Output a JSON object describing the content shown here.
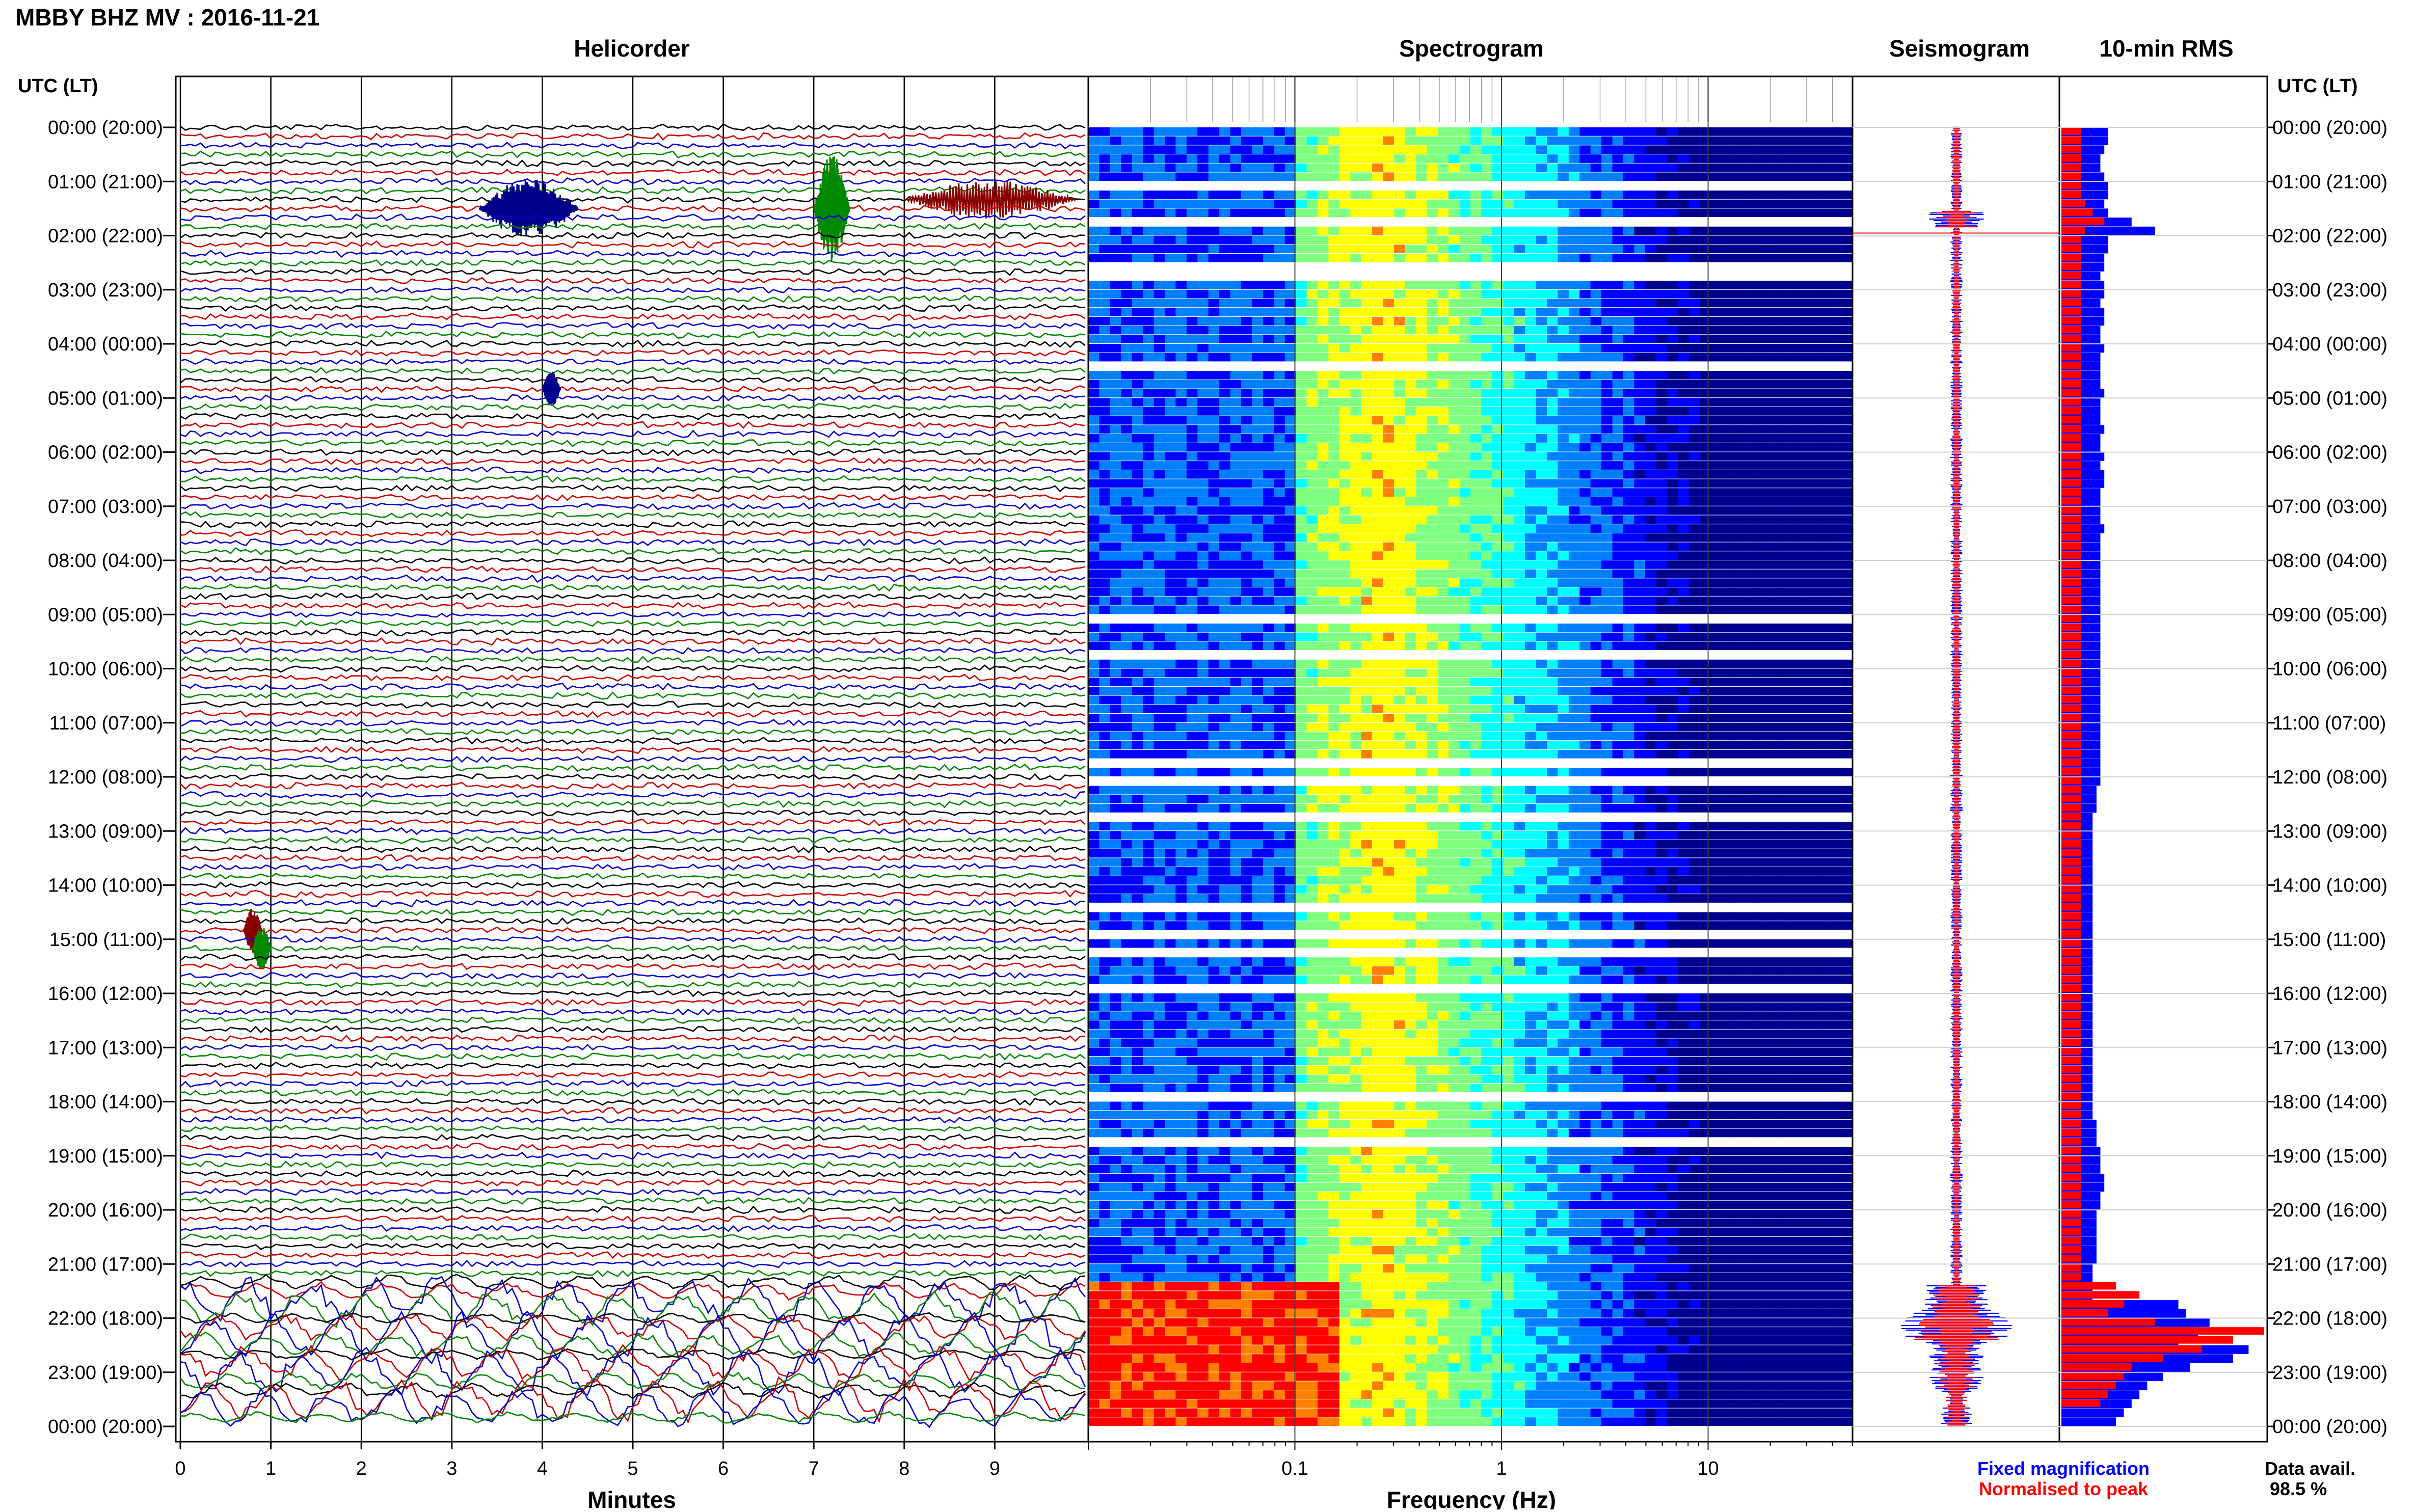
{
  "page_title": "MBBY BHZ MV : 2016-11-21",
  "colors": {
    "trace_cycle": [
      "#000000",
      "#cc0000",
      "#0000cc",
      "#008800"
    ],
    "fixed": "#0000ff",
    "normalised": "#ff0000"
  },
  "hour_labels": [
    "00:00 (20:00)",
    "01:00 (21:00)",
    "02:00 (22:00)",
    "03:00 (23:00)",
    "04:00 (00:00)",
    "05:00 (01:00)",
    "06:00 (02:00)",
    "07:00 (03:00)",
    "08:00 (04:00)",
    "09:00 (05:00)",
    "10:00 (06:00)",
    "11:00 (07:00)",
    "12:00 (08:00)",
    "13:00 (09:00)",
    "14:00 (10:00)",
    "15:00 (11:00)",
    "16:00 (12:00)",
    "17:00 (13:00)",
    "18:00 (14:00)",
    "19:00 (15:00)",
    "20:00 (16:00)",
    "21:00 (17:00)",
    "22:00 (18:00)",
    "23:00 (19:00)",
    "00:00 (20:00)"
  ],
  "time_axis_header": "UTC (LT)",
  "chart_data": [
    {
      "type": "line",
      "title": "Helicorder",
      "xlabel": "Minutes",
      "x_ticks": [
        "0",
        "1",
        "2",
        "3",
        "4",
        "5",
        "6",
        "7",
        "8",
        "9"
      ],
      "xlim": [
        0,
        10
      ],
      "rows": 144,
      "row_minutes": 10,
      "events": [
        {
          "row": 9,
          "start_min": 3.3,
          "end_min": 4.4,
          "amplitude": 3.5,
          "color": "#000088"
        },
        {
          "row": 9,
          "start_min": 7.0,
          "end_min": 7.4,
          "amplitude": 6,
          "color": "#008800"
        },
        {
          "row": 8,
          "start_min": 8.0,
          "end_min": 9.9,
          "amplitude": 2.2,
          "color": "#880000"
        },
        {
          "row": 29,
          "start_min": 4.0,
          "end_min": 4.2,
          "amplitude": 2,
          "color": "#000088"
        },
        {
          "row": 89,
          "start_min": 0.7,
          "end_min": 0.9,
          "amplitude": 2.5,
          "color": "#880000"
        },
        {
          "row": 91,
          "start_min": 0.8,
          "end_min": 1.0,
          "amplitude": 2.5,
          "color": "#008800"
        }
      ],
      "noise_profile": "low until 21:20 UTC, strong long-period oscillation 21:20-24:00 UTC"
    },
    {
      "type": "heatmap",
      "title": "Spectrogram",
      "xlabel": "Frequency (Hz)",
      "x_scale": "log",
      "xlim": [
        0.01,
        50
      ],
      "x_ticks": [
        "0.1",
        "1",
        "10"
      ],
      "colormap": [
        "#00008f",
        "#0000ff",
        "#007fff",
        "#00ffff",
        "#7fff7f",
        "#ffff00",
        "#ff7f00",
        "#ff0000"
      ],
      "energy_peak_hz": 0.25,
      "high_energy_period_utc": "21:20-24:00 below 0.15 Hz"
    },
    {
      "type": "line",
      "title": "Seismogram",
      "series": [
        {
          "name": "Fixed magnification",
          "color": "#0000ff"
        },
        {
          "name": "Normalised to peak",
          "color": "#ff0000"
        }
      ],
      "events_utc": [
        "01:40",
        "21:30-22:50"
      ]
    },
    {
      "type": "bar",
      "title": "10-min RMS",
      "orientation": "horizontal",
      "series": [
        {
          "name": "Fixed magnification",
          "color": "#0000ff",
          "values": [
            0.6,
            0.6,
            0.55,
            0.5,
            0.5,
            0.55,
            0.6,
            0.6,
            0.55,
            0.6,
            0.9,
            1.2,
            0.6,
            0.6,
            0.55,
            0.55,
            0.5,
            0.55,
            0.55,
            0.5,
            0.55,
            0.55,
            0.5,
            0.5,
            0.55,
            0.5,
            0.5,
            0.5,
            0.5,
            0.55,
            0.5,
            0.5,
            0.5,
            0.55,
            0.5,
            0.5,
            0.55,
            0.5,
            0.55,
            0.55,
            0.5,
            0.5,
            0.5,
            0.5,
            0.55,
            0.5,
            0.5,
            0.5,
            0.5,
            0.5,
            0.5,
            0.5,
            0.5,
            0.5,
            0.5,
            0.5,
            0.5,
            0.5,
            0.5,
            0.5,
            0.5,
            0.5,
            0.5,
            0.5,
            0.5,
            0.5,
            0.5,
            0.5,
            0.5,
            0.5,
            0.5,
            0.5,
            0.5,
            0.45,
            0.45,
            0.45,
            0.4,
            0.4,
            0.4,
            0.4,
            0.4,
            0.4,
            0.4,
            0.4,
            0.4,
            0.4,
            0.4,
            0.4,
            0.4,
            0.4,
            0.4,
            0.4,
            0.4,
            0.4,
            0.4,
            0.4,
            0.4,
            0.4,
            0.4,
            0.4,
            0.4,
            0.4,
            0.4,
            0.4,
            0.4,
            0.4,
            0.4,
            0.4,
            0.4,
            0.4,
            0.45,
            0.45,
            0.45,
            0.5,
            0.5,
            0.5,
            0.55,
            0.55,
            0.5,
            0.5,
            0.45,
            0.45,
            0.45,
            0.45,
            0.45,
            0.45,
            0.4,
            0.4,
            0.4,
            0.4,
            1.5,
            1.6,
            1.9,
            1.75,
            1.5,
            2.4,
            2.2,
            1.65,
            1.3,
            1.1,
            1.0,
            0.9,
            0.8,
            0.7
          ]
        },
        {
          "name": "Normalised to peak",
          "color": "#ff0000",
          "values": [
            0.25,
            0.25,
            0.25,
            0.25,
            0.25,
            0.25,
            0.25,
            0.25,
            0.3,
            0.4,
            0.55,
            0.3,
            0.25,
            0.25,
            0.25,
            0.25,
            0.25,
            0.25,
            0.25,
            0.25,
            0.25,
            0.25,
            0.25,
            0.25,
            0.25,
            0.25,
            0.25,
            0.25,
            0.25,
            0.25,
            0.25,
            0.25,
            0.25,
            0.25,
            0.25,
            0.25,
            0.25,
            0.25,
            0.25,
            0.25,
            0.25,
            0.25,
            0.25,
            0.25,
            0.25,
            0.25,
            0.25,
            0.25,
            0.25,
            0.25,
            0.25,
            0.25,
            0.25,
            0.25,
            0.25,
            0.25,
            0.25,
            0.25,
            0.25,
            0.25,
            0.25,
            0.25,
            0.25,
            0.25,
            0.25,
            0.25,
            0.25,
            0.25,
            0.25,
            0.25,
            0.25,
            0.25,
            0.25,
            0.25,
            0.25,
            0.25,
            0.25,
            0.25,
            0.25,
            0.25,
            0.25,
            0.25,
            0.25,
            0.25,
            0.25,
            0.25,
            0.25,
            0.25,
            0.25,
            0.25,
            0.25,
            0.25,
            0.25,
            0.25,
            0.25,
            0.25,
            0.25,
            0.25,
            0.25,
            0.25,
            0.25,
            0.25,
            0.25,
            0.25,
            0.25,
            0.25,
            0.25,
            0.25,
            0.25,
            0.25,
            0.25,
            0.25,
            0.25,
            0.25,
            0.25,
            0.25,
            0.25,
            0.25,
            0.25,
            0.25,
            0.25,
            0.25,
            0.25,
            0.25,
            0.25,
            0.25,
            0.25,
            0.25,
            0.7,
            1.0,
            0.8,
            0.6,
            1.2,
            2.6,
            2.2,
            1.8,
            1.3,
            0.9,
            0.8,
            0.7,
            0.6,
            0.5
          ]
        }
      ],
      "xlim": [
        0,
        2.6
      ]
    }
  ],
  "legend": {
    "fixed_label": "Fixed magnification",
    "normalised_label": "Normalised to peak"
  },
  "data_availability": {
    "label": "Data avail.",
    "value": "98.5 %"
  }
}
